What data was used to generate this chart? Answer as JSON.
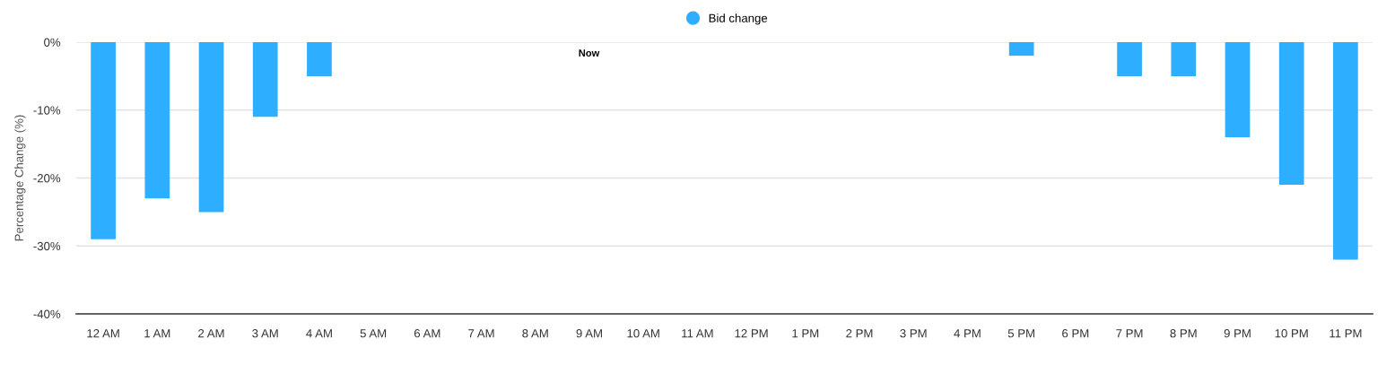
{
  "chart_data": {
    "type": "bar",
    "categories": [
      "12 AM",
      "1 AM",
      "2 AM",
      "3 AM",
      "4 AM",
      "5 AM",
      "6 AM",
      "7 AM",
      "8 AM",
      "9 AM",
      "10 AM",
      "11 AM",
      "12 PM",
      "1 PM",
      "2 PM",
      "3 PM",
      "4 PM",
      "5 PM",
      "6 PM",
      "7 PM",
      "8 PM",
      "9 PM",
      "10 PM",
      "11 PM"
    ],
    "series": [
      {
        "name": "Bid change",
        "color": "#2daefe",
        "values": [
          -29,
          -23,
          -25,
          -11,
          -5,
          null,
          null,
          null,
          null,
          null,
          null,
          null,
          null,
          null,
          null,
          null,
          null,
          -2,
          null,
          -5,
          -5,
          -14,
          -21,
          -32
        ]
      }
    ],
    "ylabel": "Percentage Change (%)",
    "ylim": [
      -40,
      0
    ],
    "yticks": [
      {
        "value": 0,
        "label": "0%"
      },
      {
        "value": -10,
        "label": "-10%"
      },
      {
        "value": -20,
        "label": "-20%"
      },
      {
        "value": -30,
        "label": "-30%"
      },
      {
        "value": -40,
        "label": "-40%"
      }
    ],
    "annotations": [
      "Now"
    ],
    "grid": "y",
    "legend": "top"
  }
}
